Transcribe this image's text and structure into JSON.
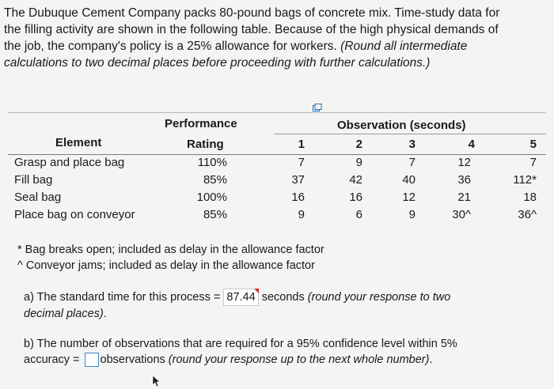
{
  "problem": {
    "line1": "The Dubuque Cement Company packs 80-pound bags of concrete mix. Time-study data for",
    "line2": "the filling activity are shown in the following table. Because of the high physical demands of",
    "line3a": "the job, the company's policy is a 25% allowance for workers. ",
    "line3b": "(Round all intermediate",
    "line4": "calculations to two decimal places before proceeding with further calculations.)"
  },
  "table": {
    "header_performance": "Performance",
    "header_observation": "Observation (seconds)",
    "header_element": "Element",
    "header_rating": "Rating",
    "obs_numbers": [
      "1",
      "2",
      "3",
      "4",
      "5"
    ],
    "rows": [
      {
        "element": "Grasp and place bag",
        "rating": "110%",
        "obs": [
          "7",
          "9",
          "7",
          "12",
          "7"
        ]
      },
      {
        "element": "Fill bag",
        "rating": "85%",
        "obs": [
          "37",
          "42",
          "40",
          "36",
          "112*"
        ]
      },
      {
        "element": "Seal bag",
        "rating": "100%",
        "obs": [
          "16",
          "16",
          "12",
          "21",
          "18"
        ]
      },
      {
        "element": "Place bag on conveyor",
        "rating": "85%",
        "obs": [
          "9",
          "6",
          "9",
          "30^",
          "36^"
        ]
      }
    ]
  },
  "footnotes": {
    "star": "* Bag breaks open; included as delay in the allowance factor",
    "caret": "^ Conveyor jams; included as delay in the allowance factor"
  },
  "question_a": {
    "prefix": "a) The standard time for this process = ",
    "answer": "87.44",
    "suffix_plain": " seconds ",
    "suffix_italic": "(round your response to two",
    "line2_italic": "decimal places)",
    "line2_end": "."
  },
  "question_b": {
    "line1": "b) The number of observations that are required for a 95% confidence level within 5%",
    "line2_prefix": "accuracy = ",
    "line2_suffix_plain": "observations ",
    "line2_suffix_italic": "(round your response up to the next whole number)",
    "line2_end": "."
  },
  "colors": {
    "answer_flag": "#d9262b",
    "input_border": "#3f83c5"
  }
}
